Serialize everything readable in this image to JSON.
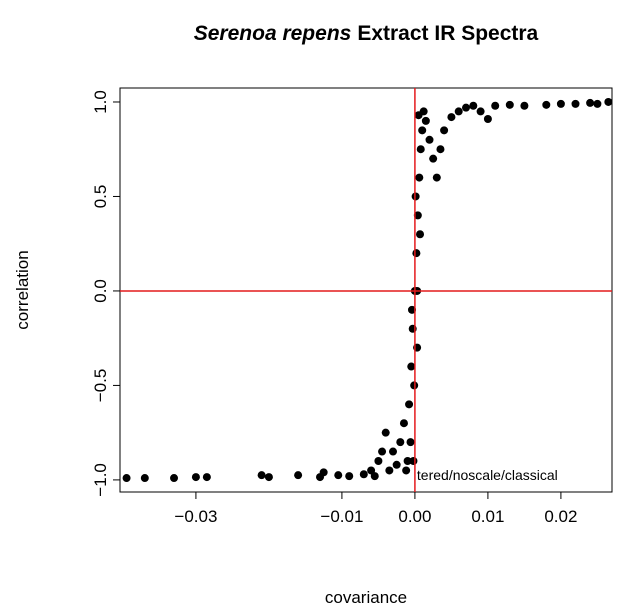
{
  "chart_data": {
    "type": "scatter",
    "title_italic": "Serenoa repens",
    "title": "Extract IR Spectra",
    "x_label": "covariance",
    "y_label": "correlation",
    "annotation": "tered/noscale/classical",
    "xlim": [
      -0.0404,
      0.027
    ],
    "ylim": [
      -1.064,
      1.074
    ],
    "xticks": [
      {
        "value": -0.03,
        "label": "−0.03"
      },
      {
        "value": -0.01,
        "label": "−0.01"
      },
      {
        "value": 0,
        "label": "0.00"
      },
      {
        "value": 0.01,
        "label": "0.01"
      },
      {
        "value": 0.02,
        "label": "0.02"
      }
    ],
    "yticks": [
      {
        "value": -1,
        "label": "−1.0"
      },
      {
        "value": -0.5,
        "label": "−0.5"
      },
      {
        "value": 0,
        "label": "0.0"
      },
      {
        "value": 0.5,
        "label": "0.5"
      },
      {
        "value": 1,
        "label": "1.0"
      }
    ],
    "reference_lines_color": "#e41a1c",
    "series": [
      {
        "color": "#000000",
        "x": [
          -0.0395,
          -0.037,
          -0.033,
          -0.03,
          -0.0285,
          -0.021,
          -0.02,
          -0.016,
          -0.0125,
          -0.0105,
          -0.013,
          -0.009,
          -0.007,
          -0.006,
          -0.0055,
          -0.005,
          -0.0045,
          -0.004,
          -0.0035,
          -0.003,
          -0.0025,
          -0.002,
          -0.0015,
          -0.001,
          -0.0008,
          -0.0005,
          -0.0003,
          -0.0002,
          -0.0001,
          0,
          0.0001,
          0.0002,
          0.0003,
          0.0004,
          0.0006,
          0.0008,
          0.001,
          0.0015,
          0.002,
          0.0025,
          0.003,
          0.0035,
          0.004,
          0.005,
          0.006,
          0.007,
          0.008,
          0.009,
          0.01,
          0.011,
          0.013,
          0.015,
          0.018,
          0.02,
          0.022,
          0.024,
          0.025,
          0.0265,
          -0.0012,
          -0.0006,
          0.0005,
          0.0012,
          -0.0004,
          0.0007,
          0.0003
        ],
        "y": [
          -0.99,
          -0.99,
          -0.99,
          -0.985,
          -0.985,
          -0.975,
          -0.985,
          -0.975,
          -0.96,
          -0.975,
          -0.985,
          -0.98,
          -0.97,
          -0.95,
          -0.98,
          -0.9,
          -0.85,
          -0.75,
          -0.95,
          -0.85,
          -0.92,
          -0.8,
          -0.7,
          -0.9,
          -0.6,
          -0.4,
          -0.2,
          -0.9,
          -0.5,
          0,
          0.5,
          0.2,
          0,
          0.4,
          0.6,
          0.75,
          0.85,
          0.9,
          0.8,
          0.7,
          0.6,
          0.75,
          0.85,
          0.92,
          0.95,
          0.97,
          0.98,
          0.95,
          0.91,
          0.98,
          0.985,
          0.98,
          0.985,
          0.99,
          0.99,
          0.995,
          0.99,
          1.0,
          -0.95,
          -0.8,
          0.93,
          0.95,
          -0.1,
          0.3,
          -0.3
        ]
      }
    ]
  }
}
